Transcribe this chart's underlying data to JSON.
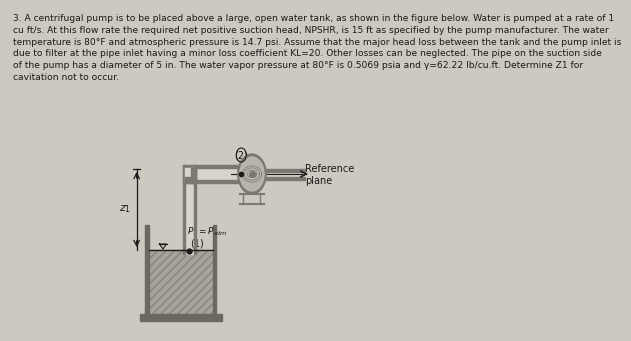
{
  "bg_color": "#cdc8c0",
  "text_color": "#1a1a1a",
  "title_text": "3. A centrifugal pump is to be placed above a large, open water tank, as shown in the figure below. Water is pumped at a rate of 1\ncu ft/s. At this flow rate the required net positive suction head, NPSHR, is 15 ft as specified by the pump manufacturer. The water\ntemperature is 80°F and atmospheric pressure is 14.7 psi. Assume that the major head loss between the tank and the pump inlet is\ndue to filter at the pipe inlet having a minor loss coefficient KL=20. Other losses can be neglected. The pipe on the suction side\nof the pump has a diameter of 5 in. The water vapor pressure at 80°F is 0.5069 psia and γ=62.22 lb/cu.ft. Determine Z1 for\ncavitation not to occur.",
  "label_p1": "$P_1 = P_{atm}$",
  "label_1": "(1)",
  "label_2": "(2)",
  "label_ref": "Reference\nplane",
  "label_z1": "$z_1$",
  "pipe_gray": "#7a7870",
  "pipe_light": "#b0aca4",
  "tank_wall": "#6a6860",
  "water_fill": "#a8a49c",
  "pump_outline": "#6a6860",
  "pump_fill": "#b8b4ac",
  "bg_light": "#d8d4cc"
}
